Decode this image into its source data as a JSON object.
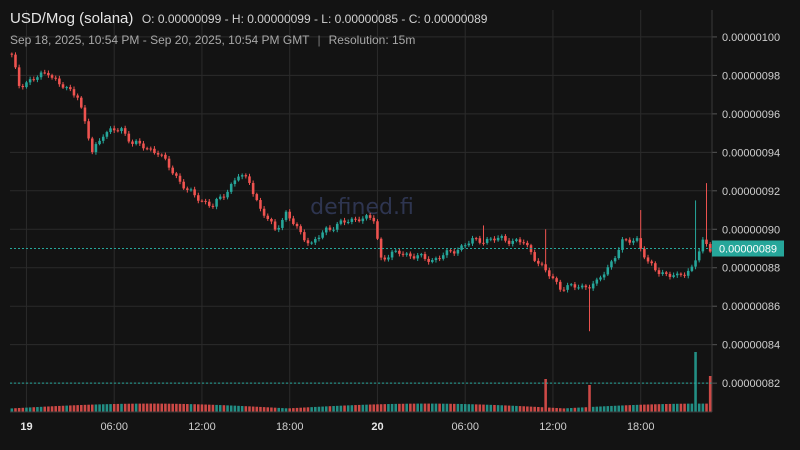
{
  "header": {
    "pair": "USD/Mog (solana)",
    "ohlc": "O: 0.00000099 - H: 0.00000099 - L: 0.00000085 - C: 0.00000089",
    "range": "Sep 18, 2025, 10:54 PM - Sep 20, 2025, 10:54 PM GMT",
    "separator": "|",
    "resolution": "Resolution: 15m"
  },
  "watermark": "defined.fi",
  "colors": {
    "up": "#26a69a",
    "down": "#ef5350",
    "price_line": "#26a69a",
    "grid": "#2b2b2b",
    "background": "#131313"
  },
  "chart_data": {
    "type": "candlestick",
    "interval": "15m",
    "ylim": [
      8.05e-07,
      1.014e-06
    ],
    "y_ticks": [
      "0.00000082",
      "0.00000084",
      "0.00000086",
      "0.00000088",
      "0.00000090",
      "0.00000092",
      "0.00000094",
      "0.00000096",
      "0.00000098",
      "0.00000100"
    ],
    "x_ticks": [
      {
        "label": "19",
        "bold": true,
        "idx": 4
      },
      {
        "label": "06:00",
        "bold": false,
        "idx": 28
      },
      {
        "label": "12:00",
        "bold": false,
        "idx": 52
      },
      {
        "label": "18:00",
        "bold": false,
        "idx": 76
      },
      {
        "label": "20",
        "bold": true,
        "idx": 100
      },
      {
        "label": "06:00",
        "bold": false,
        "idx": 124
      },
      {
        "label": "12:00",
        "bold": false,
        "idx": 148
      },
      {
        "label": "18:00",
        "bold": false,
        "idx": 172
      }
    ],
    "last_price": "0.00000089",
    "last_price_value": 8.9e-07,
    "reference_line_value": 8.2e-07,
    "candle_count": 192,
    "anchors": [
      [
        0,
        9.9e-07
      ],
      [
        2,
        9.75e-07
      ],
      [
        6,
        9.78e-07
      ],
      [
        10,
        9.82e-07
      ],
      [
        13,
        9.75e-07
      ],
      [
        18,
        9.7e-07
      ],
      [
        20,
        9.55e-07
      ],
      [
        22,
        9.4e-07
      ],
      [
        25,
        9.5e-07
      ],
      [
        30,
        9.52e-07
      ],
      [
        33,
        9.45e-07
      ],
      [
        40,
        9.4e-07
      ],
      [
        44,
        9.3e-07
      ],
      [
        48,
        9.2e-07
      ],
      [
        52,
        9.15e-07
      ],
      [
        55,
        9.12e-07
      ],
      [
        58,
        9.18e-07
      ],
      [
        62,
        9.28e-07
      ],
      [
        65,
        9.25e-07
      ],
      [
        68,
        9.1e-07
      ],
      [
        72,
        9e-07
      ],
      [
        75,
        9.08e-07
      ],
      [
        79,
        8.98e-07
      ],
      [
        82,
        8.92e-07
      ],
      [
        86,
        9e-07
      ],
      [
        90,
        9.03e-07
      ],
      [
        95,
        9.06e-07
      ],
      [
        99,
        9.05e-07
      ],
      [
        101,
        8.85e-07
      ],
      [
        106,
        8.88e-07
      ],
      [
        110,
        8.86e-07
      ],
      [
        115,
        8.84e-07
      ],
      [
        120,
        8.88e-07
      ],
      [
        126,
        8.94e-07
      ],
      [
        134,
        8.95e-07
      ],
      [
        140,
        8.93e-07
      ],
      [
        146,
        8.78e-07
      ],
      [
        150,
        8.7e-07
      ],
      [
        156,
        8.7e-07
      ],
      [
        160,
        8.72e-07
      ],
      [
        163,
        8.8e-07
      ],
      [
        167,
        8.93e-07
      ],
      [
        171,
        8.95e-07
      ],
      [
        174,
        8.82e-07
      ],
      [
        177,
        8.78e-07
      ],
      [
        182,
        8.75e-07
      ],
      [
        186,
        8.8e-07
      ],
      [
        189,
        8.93e-07
      ],
      [
        191,
        8.9e-07
      ]
    ],
    "spikes": [
      {
        "idx": 129,
        "high": 9.02e-07
      },
      {
        "idx": 146,
        "high": 9e-07
      },
      {
        "idx": 158,
        "low": 8.47e-07
      },
      {
        "idx": 172,
        "high": 9.1e-07
      },
      {
        "idx": 187,
        "high": 9.15e-07
      },
      {
        "idx": 190,
        "high": 9.24e-07
      }
    ],
    "volume_spikes": [
      {
        "idx": 146,
        "value": 0.55
      },
      {
        "idx": 158,
        "value": 0.45
      },
      {
        "idx": 187,
        "value": 1.0
      },
      {
        "idx": 191,
        "value": 0.6
      }
    ]
  }
}
